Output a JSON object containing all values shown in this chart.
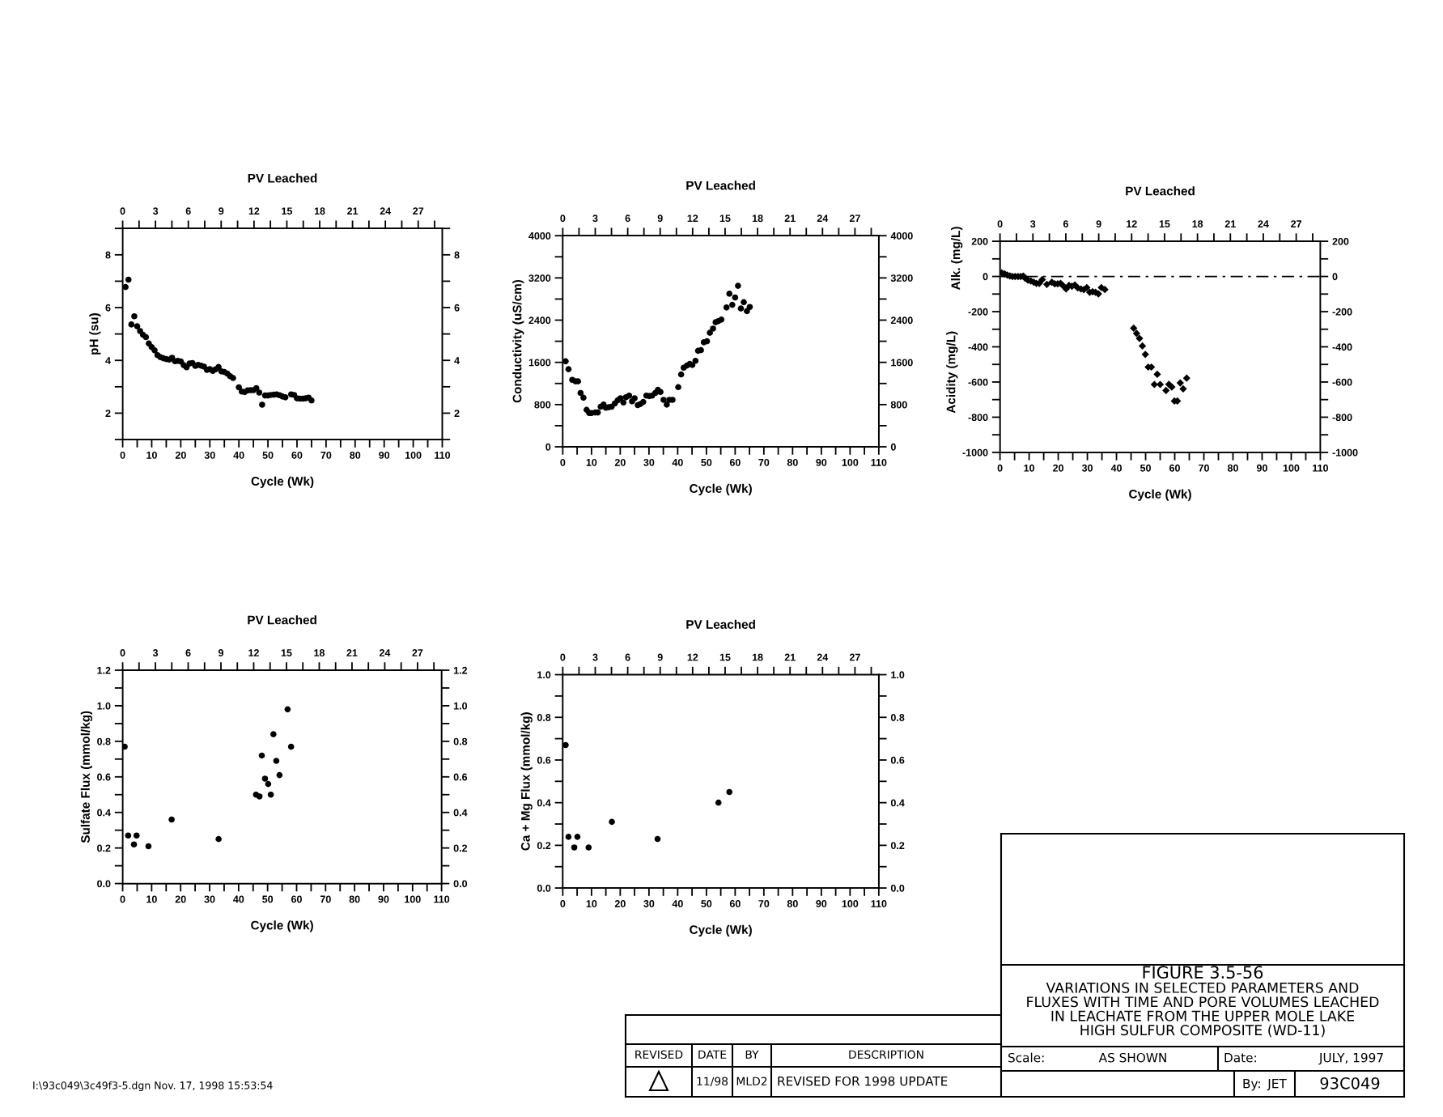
{
  "chart_data": [
    {
      "type": "scatter",
      "x2label": "PV Leached",
      "xlabel": "Cycle (Wk)",
      "ylabel": "pH (su)",
      "marker": "circle",
      "color": "#000000",
      "x": [
        1,
        2,
        3,
        4,
        5,
        6,
        7,
        8,
        9,
        10,
        11,
        12,
        13,
        14,
        15,
        16,
        17,
        18,
        19,
        20,
        21,
        22,
        23,
        24,
        25,
        26,
        27,
        28,
        29,
        30,
        31,
        32,
        33,
        34,
        35,
        36,
        37,
        38,
        40,
        41,
        42,
        43,
        44,
        45,
        46,
        47,
        48,
        49,
        50,
        51,
        52,
        53,
        54,
        55,
        56,
        58,
        59,
        60,
        61,
        62,
        63,
        64,
        65
      ],
      "values": [
        6.78,
        7.06,
        5.36,
        5.67,
        5.29,
        5.11,
        4.97,
        4.88,
        4.64,
        4.5,
        4.38,
        4.2,
        4.12,
        4.08,
        4.05,
        4.03,
        4.1,
        3.97,
        3.98,
        3.96,
        3.82,
        3.74,
        3.88,
        3.9,
        3.79,
        3.83,
        3.8,
        3.76,
        3.64,
        3.67,
        3.6,
        3.66,
        3.75,
        3.58,
        3.56,
        3.5,
        3.4,
        3.33,
        2.98,
        2.82,
        2.8,
        2.86,
        2.87,
        2.87,
        2.95,
        2.78,
        2.32,
        2.67,
        2.67,
        2.69,
        2.7,
        2.71,
        2.68,
        2.63,
        2.6,
        2.71,
        2.69,
        2.56,
        2.55,
        2.55,
        2.56,
        2.59,
        2.48
      ],
      "xlim": [
        0,
        110
      ],
      "xticks": [
        0,
        {
          "value": 5,
          "label": null
        },
        10,
        {
          "value": 15,
          "label": null
        },
        20,
        {
          "value": 25,
          "label": null
        },
        30,
        {
          "value": 35,
          "label": null
        },
        40,
        {
          "value": 45,
          "label": null
        },
        50,
        {
          "value": 55,
          "label": null
        },
        60,
        {
          "value": 65,
          "label": null
        },
        70,
        {
          "value": 75,
          "label": null
        },
        80,
        {
          "value": 85,
          "label": null
        },
        90,
        {
          "value": 95,
          "label": null
        },
        100,
        {
          "value": 105,
          "label": null
        },
        110
      ],
      "x2lim": [
        0,
        29.2
      ],
      "x2ticks": [
        0,
        {
          "value": 1.5,
          "label": null
        },
        3,
        {
          "value": 4.5,
          "label": null
        },
        6,
        {
          "value": 7.5,
          "label": null
        },
        9,
        {
          "value": 10.5,
          "label": null
        },
        12,
        {
          "value": 13.5,
          "label": null
        },
        15,
        {
          "value": 16.5,
          "label": null
        },
        18,
        {
          "value": 19.5,
          "label": null
        },
        21,
        {
          "value": 22.5,
          "label": null
        },
        24,
        {
          "value": 25.5,
          "label": null
        },
        27,
        {
          "value": 28.5,
          "label": null
        }
      ],
      "ylim": [
        1,
        9
      ],
      "yticks": [
        {
          "value": 1,
          "label": null
        },
        2,
        {
          "value": 3,
          "label": null
        },
        4,
        {
          "value": 5,
          "label": null
        },
        6,
        {
          "value": 7,
          "label": null
        },
        8,
        {
          "value": 9,
          "label": null
        }
      ],
      "y2lim": [
        1,
        9
      ],
      "y2ticks": [
        {
          "value": 1,
          "label": null
        },
        2,
        {
          "value": 3,
          "label": null
        },
        4,
        {
          "value": 5,
          "label": null
        },
        6,
        {
          "value": 7,
          "label": null
        },
        8,
        {
          "value": 9,
          "label": null
        }
      ]
    },
    {
      "type": "scatter",
      "x2label": "PV Leached",
      "xlabel": "Cycle (Wk)",
      "ylabel": "Conductivity (uS/cm)",
      "marker": "circle",
      "color": "#000000",
      "x": [
        1,
        2,
        3.3,
        4.4,
        5.3,
        6.2,
        7.2,
        8.3,
        9.2,
        10,
        11.3,
        12.2,
        13.2,
        14.2,
        15,
        16,
        17,
        18.1,
        19.1,
        20.1,
        21.1,
        22,
        23.1,
        24.1,
        25,
        26.1,
        27,
        28,
        29.1,
        30.1,
        31.1,
        32.2,
        33.1,
        34,
        35.1,
        36.2,
        37.1,
        38.2,
        40.2,
        41.2,
        42.1,
        43.2,
        44.2,
        45.1,
        46.2,
        47.1,
        48.1,
        49.1,
        50.2,
        51.2,
        52.3,
        53.2,
        54.1,
        55.2,
        57,
        58,
        59,
        60,
        61,
        62,
        63,
        64.1,
        65.1
      ],
      "values": [
        1620,
        1470,
        1270,
        1240,
        1240,
        1020,
        930,
        700,
        640,
        640,
        650,
        650,
        760,
        800,
        740,
        750,
        760,
        820,
        880,
        920,
        840,
        940,
        970,
        860,
        920,
        790,
        810,
        850,
        970,
        960,
        970,
        1020,
        1080,
        1040,
        890,
        800,
        890,
        890,
        1130,
        1370,
        1500,
        1540,
        1570,
        1550,
        1630,
        1820,
        1830,
        1980,
        2000,
        2160,
        2240,
        2360,
        2380,
        2410,
        2640,
        2900,
        2690,
        2830,
        3050,
        2620,
        2740,
        2570,
        2650
      ],
      "xlim": [
        0,
        110
      ],
      "xticks": [
        0,
        {
          "value": 5,
          "label": null
        },
        10,
        {
          "value": 15,
          "label": null
        },
        20,
        {
          "value": 25,
          "label": null
        },
        30,
        {
          "value": 35,
          "label": null
        },
        40,
        {
          "value": 45,
          "label": null
        },
        50,
        {
          "value": 55,
          "label": null
        },
        60,
        {
          "value": 65,
          "label": null
        },
        70,
        {
          "value": 75,
          "label": null
        },
        80,
        {
          "value": 85,
          "label": null
        },
        90,
        {
          "value": 95,
          "label": null
        },
        100,
        {
          "value": 105,
          "label": null
        },
        110
      ],
      "x2lim": [
        0,
        29.2
      ],
      "x2ticks": [
        0,
        {
          "value": 1.5,
          "label": null
        },
        3,
        {
          "value": 4.5,
          "label": null
        },
        6,
        {
          "value": 7.5,
          "label": null
        },
        9,
        {
          "value": 10.5,
          "label": null
        },
        12,
        {
          "value": 13.5,
          "label": null
        },
        15,
        {
          "value": 16.5,
          "label": null
        },
        18,
        {
          "value": 19.5,
          "label": null
        },
        21,
        {
          "value": 22.5,
          "label": null
        },
        24,
        {
          "value": 25.5,
          "label": null
        },
        27,
        {
          "value": 28.5,
          "label": null
        }
      ],
      "ylim": [
        0,
        4000
      ],
      "yticks": [
        0,
        {
          "value": 400,
          "label": null
        },
        800,
        {
          "value": 1200,
          "label": null
        },
        1600,
        {
          "value": 2000,
          "label": null
        },
        2400,
        {
          "value": 2800,
          "label": null
        },
        3200,
        {
          "value": 3600,
          "label": null
        },
        4000
      ],
      "y2lim": [
        0,
        4000
      ],
      "y2ticks": [
        0,
        {
          "value": 400,
          "label": null
        },
        800,
        {
          "value": 1200,
          "label": null
        },
        1600,
        {
          "value": 2000,
          "label": null
        },
        2400,
        {
          "value": 2800,
          "label": null
        },
        3200,
        {
          "value": 3600,
          "label": null
        },
        4000
      ]
    },
    {
      "type": "scatter",
      "x2label": "PV Leached",
      "xlabel": "Cycle (Wk)",
      "ylabel": "Acidity (mg/L)",
      "annotations": [
        "Alk. (mg/L)"
      ],
      "marker": "diamond",
      "color": "#000000",
      "x": [
        0.6,
        1.6,
        2.5,
        3.4,
        4.3,
        5.2,
        6.2,
        7.1,
        8,
        8.7,
        9.6,
        10.6,
        11.6,
        12.5,
        13.5,
        14.5,
        16.1,
        17.8,
        18.8,
        19.8,
        20.8,
        21.7,
        22.7,
        23.7,
        24.7,
        25.7,
        26.7,
        27.8,
        28.8,
        29.8,
        30.8,
        31.8,
        32.8,
        33.8,
        34.8,
        36,
        45.9,
        46.9,
        47.9,
        48.9,
        49.9,
        50.9,
        52,
        53,
        54,
        55,
        57,
        58,
        59,
        59.9,
        60.9,
        61.9,
        62.9,
        64.1
      ],
      "values": [
        20,
        15,
        8,
        3,
        0,
        0,
        0,
        0,
        2,
        -11,
        -21,
        -26,
        -33,
        -39,
        -39,
        -18,
        -45,
        -33,
        -42,
        -42,
        -39,
        -53,
        -71,
        -51,
        -56,
        -48,
        -65,
        -71,
        -75,
        -63,
        -90,
        -87,
        -90,
        -99,
        -63,
        -74,
        -294,
        -324,
        -352,
        -395,
        -443,
        -515,
        -515,
        -614,
        -556,
        -614,
        -648,
        -613,
        -628,
        -708,
        -708,
        -605,
        -639,
        -578
      ],
      "ref_lines": [
        {
          "axis": "y",
          "value": 0,
          "line_style": "dashed",
          "color": "#000000"
        }
      ],
      "xlim": [
        0,
        110
      ],
      "xticks": [
        0,
        {
          "value": 5,
          "label": null
        },
        10,
        {
          "value": 15,
          "label": null
        },
        20,
        {
          "value": 25,
          "label": null
        },
        30,
        {
          "value": 35,
          "label": null
        },
        40,
        {
          "value": 45,
          "label": null
        },
        50,
        {
          "value": 55,
          "label": null
        },
        60,
        {
          "value": 65,
          "label": null
        },
        70,
        {
          "value": 75,
          "label": null
        },
        80,
        {
          "value": 85,
          "label": null
        },
        90,
        {
          "value": 95,
          "label": null
        },
        100,
        {
          "value": 105,
          "label": null
        },
        110
      ],
      "x2lim": [
        0,
        29.2
      ],
      "x2ticks": [
        0,
        {
          "value": 1.5,
          "label": null
        },
        3,
        {
          "value": 4.5,
          "label": null
        },
        6,
        {
          "value": 7.5,
          "label": null
        },
        9,
        {
          "value": 10.5,
          "label": null
        },
        12,
        {
          "value": 13.5,
          "label": null
        },
        15,
        {
          "value": 16.5,
          "label": null
        },
        18,
        {
          "value": 19.5,
          "label": null
        },
        21,
        {
          "value": 22.5,
          "label": null
        },
        24,
        {
          "value": 25.5,
          "label": null
        },
        27,
        {
          "value": 28.5,
          "label": null
        }
      ],
      "ylim": [
        -1000,
        200
      ],
      "yticks": [
        -1000,
        {
          "value": -900,
          "label": null
        },
        -800,
        {
          "value": -700,
          "label": null
        },
        -600,
        {
          "value": -500,
          "label": null
        },
        -400,
        {
          "value": -300,
          "label": null
        },
        -200,
        {
          "value": -100,
          "label": null
        },
        0,
        {
          "value": 100,
          "label": null
        },
        200
      ],
      "y2lim": [
        -1000,
        200
      ],
      "y2ticks": [
        -1000,
        {
          "value": -900,
          "label": null
        },
        -800,
        {
          "value": -700,
          "label": null
        },
        -600,
        {
          "value": -500,
          "label": null
        },
        -400,
        {
          "value": -300,
          "label": null
        },
        -200,
        {
          "value": -100,
          "label": null
        },
        0,
        {
          "value": 100,
          "label": null
        },
        200
      ]
    },
    {
      "type": "scatter",
      "x2label": "PV Leached",
      "xlabel": "Cycle (Wk)",
      "ylabel": "Sulfate Flux (mmol/kg)",
      "marker": "circle",
      "color": "#000000",
      "x": [
        0.7,
        1.9,
        3.9,
        4.8,
        8.9,
        16.9,
        33.1,
        46,
        47.2,
        48,
        49.1,
        50.2,
        51.1,
        52,
        53,
        54.1,
        56.9,
        58.1
      ],
      "values": [
        0.77,
        0.27,
        0.22,
        0.27,
        0.21,
        0.36,
        0.25,
        0.5,
        0.49,
        0.72,
        0.59,
        0.56,
        0.5,
        0.84,
        0.69,
        0.61,
        0.98,
        0.77
      ],
      "xlim": [
        0,
        110
      ],
      "xticks": [
        0,
        {
          "value": 5,
          "label": null
        },
        10,
        {
          "value": 15,
          "label": null
        },
        20,
        {
          "value": 25,
          "label": null
        },
        30,
        {
          "value": 35,
          "label": null
        },
        40,
        {
          "value": 45,
          "label": null
        },
        50,
        {
          "value": 55,
          "label": null
        },
        60,
        {
          "value": 65,
          "label": null
        },
        70,
        {
          "value": 75,
          "label": null
        },
        80,
        {
          "value": 85,
          "label": null
        },
        90,
        {
          "value": 95,
          "label": null
        },
        100,
        {
          "value": 105,
          "label": null
        },
        110
      ],
      "x2lim": [
        0,
        29.2
      ],
      "x2ticks": [
        0,
        {
          "value": 1.5,
          "label": null
        },
        3,
        {
          "value": 4.5,
          "label": null
        },
        6,
        {
          "value": 7.5,
          "label": null
        },
        9,
        {
          "value": 10.5,
          "label": null
        },
        12,
        {
          "value": 13.5,
          "label": null
        },
        15,
        {
          "value": 16.5,
          "label": null
        },
        18,
        {
          "value": 19.5,
          "label": null
        },
        21,
        {
          "value": 22.5,
          "label": null
        },
        24,
        {
          "value": 25.5,
          "label": null
        },
        27,
        {
          "value": 28.5,
          "label": null
        }
      ],
      "ylim": [
        0,
        1.2
      ],
      "yticks": [
        {
          "value": 0,
          "label": "0.0"
        },
        {
          "value": 0.1,
          "label": null
        },
        0.2,
        {
          "value": 0.3,
          "label": null
        },
        0.4,
        {
          "value": 0.5,
          "label": null
        },
        0.6,
        {
          "value": 0.7,
          "label": null
        },
        0.8,
        {
          "value": 0.9,
          "label": null
        },
        {
          "value": 1,
          "label": "1.0"
        },
        {
          "value": 1.1,
          "label": null
        },
        1.2
      ],
      "y2lim": [
        0,
        1.2
      ],
      "y2ticks": [
        {
          "value": 0,
          "label": "0.0"
        },
        {
          "value": 0.1,
          "label": null
        },
        0.2,
        {
          "value": 0.3,
          "label": null
        },
        0.4,
        {
          "value": 0.5,
          "label": null
        },
        0.6,
        {
          "value": 0.7,
          "label": null
        },
        0.8,
        {
          "value": 0.9,
          "label": null
        },
        {
          "value": 1,
          "label": "1.0"
        },
        {
          "value": 1.1,
          "label": null
        },
        1.2
      ]
    },
    {
      "type": "scatter",
      "x2label": "PV Leached",
      "xlabel": "Cycle (Wk)",
      "ylabel": "Ca + Mg Flux (mmol/kg)",
      "marker": "circle",
      "color": "#000000",
      "x": [
        1,
        2,
        4,
        5.1,
        9,
        17.1,
        33,
        54.2,
        58
      ],
      "values": [
        0.67,
        0.24,
        0.19,
        0.24,
        0.19,
        0.31,
        0.23,
        0.4,
        0.45
      ],
      "xlim": [
        0,
        110
      ],
      "xticks": [
        0,
        {
          "value": 5,
          "label": null
        },
        10,
        {
          "value": 15,
          "label": null
        },
        20,
        {
          "value": 25,
          "label": null
        },
        30,
        {
          "value": 35,
          "label": null
        },
        40,
        {
          "value": 45,
          "label": null
        },
        50,
        {
          "value": 55,
          "label": null
        },
        60,
        {
          "value": 65,
          "label": null
        },
        70,
        {
          "value": 75,
          "label": null
        },
        80,
        {
          "value": 85,
          "label": null
        },
        90,
        {
          "value": 95,
          "label": null
        },
        100,
        {
          "value": 105,
          "label": null
        },
        110
      ],
      "x2lim": [
        0,
        29.2
      ],
      "x2ticks": [
        0,
        {
          "value": 1.5,
          "label": null
        },
        3,
        {
          "value": 4.5,
          "label": null
        },
        6,
        {
          "value": 7.5,
          "label": null
        },
        9,
        {
          "value": 10.5,
          "label": null
        },
        12,
        {
          "value": 13.5,
          "label": null
        },
        15,
        {
          "value": 16.5,
          "label": null
        },
        18,
        {
          "value": 19.5,
          "label": null
        },
        21,
        {
          "value": 22.5,
          "label": null
        },
        24,
        {
          "value": 25.5,
          "label": null
        },
        27,
        {
          "value": 28.5,
          "label": null
        }
      ],
      "ylim": [
        0,
        1.0
      ],
      "yticks": [
        {
          "value": 0,
          "label": "0.0"
        },
        {
          "value": 0.1,
          "label": null
        },
        0.2,
        {
          "value": 0.3,
          "label": null
        },
        0.4,
        {
          "value": 0.5,
          "label": null
        },
        0.6,
        {
          "value": 0.7,
          "label": null
        },
        0.8,
        {
          "value": 0.9,
          "label": null
        },
        {
          "value": 1,
          "label": "1.0"
        }
      ],
      "y2lim": [
        0,
        1.0
      ],
      "y2ticks": [
        {
          "value": 0,
          "label": "0.0"
        },
        {
          "value": 0.1,
          "label": null
        },
        0.2,
        {
          "value": 0.3,
          "label": null
        },
        0.4,
        {
          "value": 0.5,
          "label": null
        },
        0.6,
        {
          "value": 0.7,
          "label": null
        },
        0.8,
        {
          "value": 0.9,
          "label": null
        },
        {
          "value": 1,
          "label": "1.0"
        }
      ]
    },
    {
      "type": "other",
      "annotations": [
        "FIGURE 3.5-56",
        "VARIATIONS IN SELECTED PARAMETERS AND\nFLUXES WITH TIME AND PORE VOLUMES LEACHED\nIN LEACHATE FROM THE UPPER MOLE LAKE\nHIGH SULFUR COMPOSITE (WD-11)",
        "Scale:",
        "AS SHOWN",
        "Date:",
        "JULY, 1997",
        "By:",
        "JET",
        "93C049",
        "REVISED",
        "DATE",
        "BY",
        "DESCRIPTION",
        "11/98",
        "MLD2",
        "REVISED FOR 1998 UPDATE",
        "I:\\93c049\\3c49f3-5.dgn Nov. 17, 1998 15:53:54"
      ]
    }
  ]
}
